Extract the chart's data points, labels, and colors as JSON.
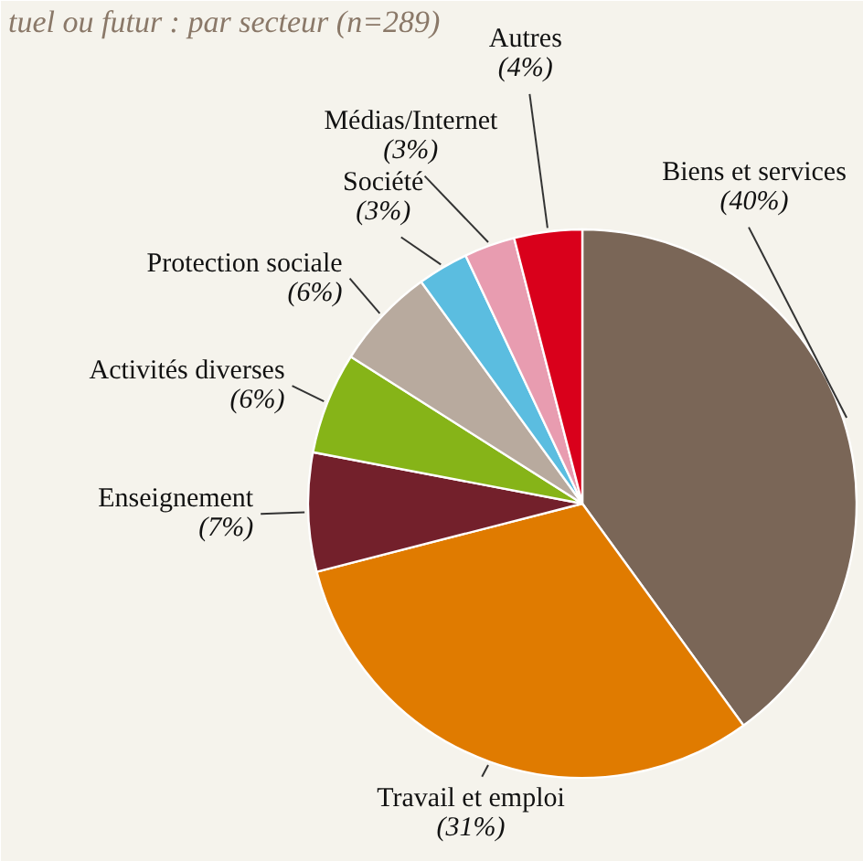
{
  "chart_data": {
    "type": "pie",
    "title": "tuel ou futur : par secteur (n=289)",
    "categories": [
      "Biens et services",
      "Travail et emploi",
      "Enseignement",
      "Activités diverses",
      "Protection sociale",
      "Société",
      "Médias/Internet",
      "Autres"
    ],
    "values": [
      40,
      31,
      7,
      6,
      6,
      3,
      3,
      4
    ],
    "colors": [
      "#7a6657",
      "#e07b00",
      "#73202b",
      "#86b418",
      "#b8aa9e",
      "#5bbde0",
      "#e89cb0",
      "#d9001b"
    ],
    "value_labels": [
      "(40%)",
      "(31%)",
      "(7%)",
      "(6%)",
      "(6%)",
      "(3%)",
      "(3%)",
      "(4%)"
    ]
  }
}
